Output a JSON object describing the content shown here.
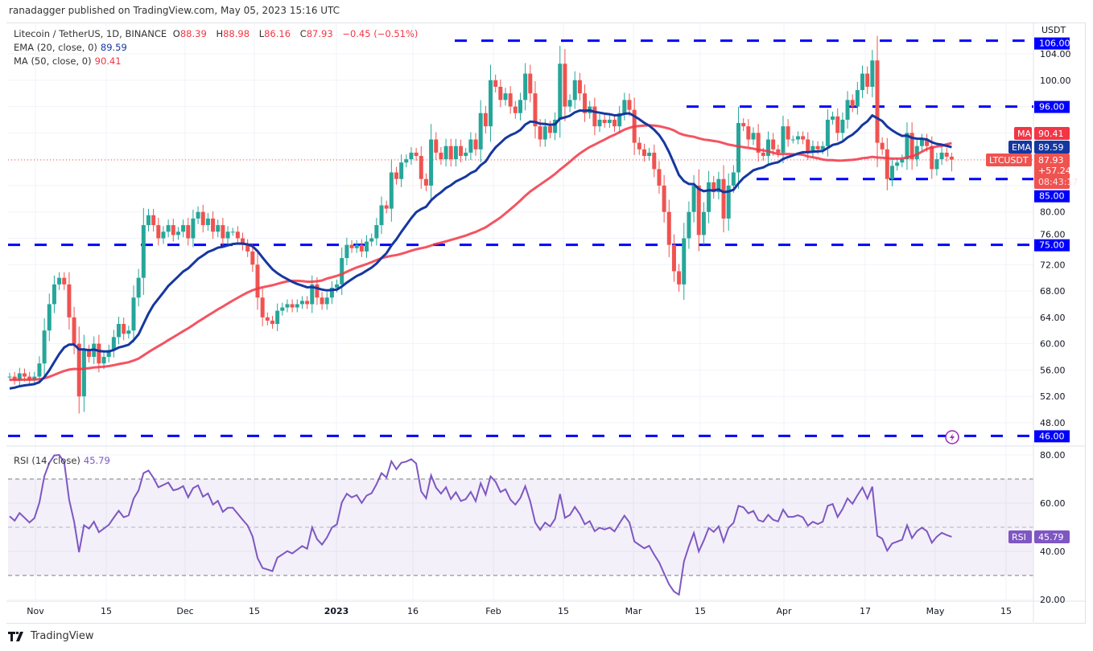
{
  "publisher_line": "ranadagger published on TradingView.com, May 05, 2023 15:16 UTC",
  "legend": {
    "symbol": "Litecoin / TetherUS, 1D, BINANCE",
    "o_label": "O",
    "open": "88.39",
    "h_label": "H",
    "high": "88.98",
    "l_label": "L",
    "low": "86.16",
    "c_label": "C",
    "close": "87.93",
    "change": "−0.45 (−0.51%)",
    "ema_label": "EMA (20, close, 0)",
    "ema_value": "89.59",
    "ma_label": "MA (50, close, 0)",
    "ma_value": "90.41",
    "rsi_label": "RSI (14, close)",
    "rsi_value": "45.79"
  },
  "price_axis": {
    "currency": "USDT",
    "ticks": [
      "104.00",
      "100.00",
      "80.00",
      "76.00",
      "72.00",
      "68.00",
      "64.00",
      "60.00",
      "56.00",
      "52.00",
      "48.00"
    ],
    "tick_values": [
      104,
      100,
      80,
      76,
      72,
      68,
      64,
      60,
      56,
      52,
      48
    ],
    "levels": [
      {
        "label": "106.00",
        "value": 106
      },
      {
        "label": "96.00",
        "value": 96
      },
      {
        "label": "85.00",
        "value": 85
      },
      {
        "label": "75.00",
        "value": 75
      },
      {
        "label": "46.00",
        "value": 46
      }
    ],
    "ma_tag": {
      "name": "MA",
      "value": "90.41"
    },
    "ema_tag": {
      "name": "EMA",
      "value": "89.59"
    },
    "last_tag": {
      "name": "LTCUSDT",
      "value": "87.93",
      "change": "+57.24%",
      "countdown": "08:43:17"
    }
  },
  "rsi_axis": {
    "ticks": [
      "80.00",
      "60.00",
      "40.00",
      "20.00"
    ],
    "tick_values": [
      80,
      60,
      40,
      20
    ],
    "tag": {
      "name": "RSI",
      "value": "45.79"
    }
  },
  "time_axis": [
    "Nov",
    "15",
    "Dec",
    "15",
    "2023",
    "16",
    "Feb",
    "15",
    "Mar",
    "15",
    "Apr",
    "17",
    "May",
    "15"
  ],
  "footer_brand": "TradingView",
  "colors": {
    "up": "#26a69a",
    "down": "#ef5350",
    "ema": "#1637a0",
    "ma": "#f23645",
    "level": "#0000ff",
    "rsi": "#7e57c2"
  },
  "chart_data": {
    "type": "candlestick",
    "title": "Litecoin / TetherUS, 1D, BINANCE",
    "x_start": "2022-10-27",
    "x_end": "2023-05-05",
    "ylim": [
      44,
      108
    ],
    "rsi_ylim": [
      18,
      84
    ],
    "horizontal_levels": [
      106,
      96,
      85,
      75,
      46
    ],
    "close": [
      55,
      54.5,
      55.5,
      55,
      54.5,
      55,
      57,
      62,
      66,
      69,
      70,
      69,
      64,
      60,
      52,
      59,
      58,
      60,
      57,
      58,
      59,
      61,
      63,
      61.5,
      62,
      67,
      70,
      78,
      79.5,
      78,
      76,
      77,
      78,
      76.5,
      77,
      78,
      76,
      79,
      80,
      78,
      79,
      77,
      78,
      76,
      77,
      77,
      76,
      75,
      74,
      72,
      67,
      64,
      63.5,
      63,
      65,
      65.5,
      66,
      65.5,
      66,
      66.5,
      66,
      69,
      67,
      66,
      67,
      68.5,
      69,
      73,
      75,
      74.5,
      75,
      74,
      75.5,
      76,
      78,
      81,
      80.5,
      86,
      85,
      87.5,
      88,
      89,
      88.5,
      85,
      84,
      91,
      89,
      88,
      90,
      88,
      90,
      88.5,
      89,
      91,
      89.5,
      95,
      93,
      100,
      99,
      97,
      98,
      96,
      95,
      97,
      101,
      98,
      93,
      91,
      93,
      92,
      94,
      102.5,
      96,
      97,
      100,
      98,
      95,
      96,
      93,
      94,
      93.5,
      94,
      93,
      95,
      97,
      95.5,
      90.5,
      89.5,
      88.5,
      89,
      86.5,
      84,
      80,
      75,
      71,
      69,
      76,
      80,
      84,
      76.5,
      80,
      84.5,
      83,
      85,
      79,
      84,
      86,
      93.5,
      93,
      91,
      92,
      89,
      88.5,
      91,
      89.5,
      89,
      93,
      91,
      91,
      91.5,
      91,
      89,
      90,
      89.5,
      90,
      94,
      94.5,
      92,
      94,
      97,
      96,
      98.5,
      101,
      99,
      103,
      90.5,
      89.5,
      85,
      87,
      87.5,
      88,
      92,
      88,
      90,
      91,
      90,
      86.5,
      88,
      89,
      88.39,
      87.93
    ],
    "last_open": 88.39,
    "last_high": 88.98,
    "last_low": 86.16
  }
}
